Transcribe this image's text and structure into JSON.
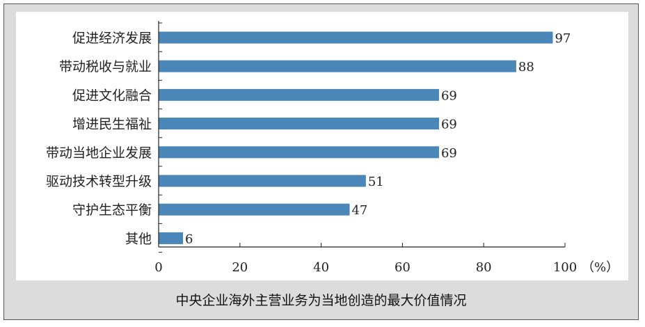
{
  "caption": "中央企业海外主营业务为当地创造的最大价值情况",
  "chart_data": {
    "type": "bar",
    "orientation": "horizontal",
    "categories": [
      "促进经济发展",
      "带动税收与就业",
      "促进文化融合",
      "增进民生福祉",
      "带动当地企业发展",
      "驱动技术转型升级",
      "守护生态平衡",
      "其他"
    ],
    "values": [
      97,
      88,
      69,
      69,
      69,
      51,
      47,
      6
    ],
    "xlim": [
      0,
      100
    ],
    "xticks": [
      "0",
      "20",
      "40",
      "60",
      "80",
      "100"
    ],
    "x_unit": "（%）",
    "grid": false,
    "bar_color": "#4a86b8"
  }
}
